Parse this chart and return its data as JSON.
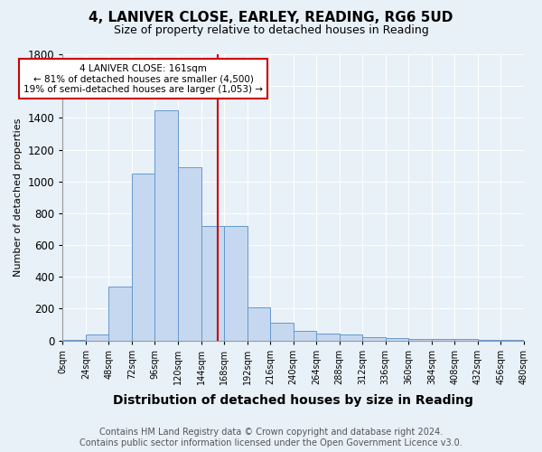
{
  "title": "4, LANIVER CLOSE, EARLEY, READING, RG6 5UD",
  "subtitle": "Size of property relative to detached houses in Reading",
  "xlabel": "Distribution of detached houses by size in Reading",
  "ylabel": "Number of detached properties",
  "footer_line1": "Contains HM Land Registry data © Crown copyright and database right 2024.",
  "footer_line2": "Contains public sector information licensed under the Open Government Licence v3.0.",
  "bar_edges": [
    0,
    24,
    48,
    72,
    96,
    120,
    144,
    168,
    192,
    216,
    240,
    264,
    288,
    312,
    336,
    360,
    384,
    408,
    432,
    456,
    480
  ],
  "bar_heights": [
    5,
    35,
    340,
    1050,
    1450,
    1090,
    720,
    720,
    210,
    110,
    60,
    45,
    35,
    20,
    15,
    12,
    10,
    8,
    6,
    5
  ],
  "bar_color": "#c5d8f0",
  "bar_edgecolor": "#6699cc",
  "vline_x": 161,
  "vline_color": "#cc0000",
  "annotation_text": "4 LANIVER CLOSE: 161sqm\n← 81% of detached houses are smaller (4,500)\n19% of semi-detached houses are larger (1,053) →",
  "annotation_box_edgecolor": "#cc0000",
  "annotation_box_facecolor": "#ffffff",
  "ylim": [
    0,
    1800
  ],
  "background_color": "#e8f0f8",
  "plot_background": "#e8f0f8",
  "tick_labels": [
    "0sqm",
    "24sqm",
    "48sqm",
    "72sqm",
    "96sqm",
    "120sqm",
    "144sqm",
    "168sqm",
    "192sqm",
    "216sqm",
    "240sqm",
    "264sqm",
    "288sqm",
    "312sqm",
    "336sqm",
    "360sqm",
    "384sqm",
    "408sqm",
    "432sqm",
    "456sqm",
    "480sqm"
  ],
  "title_fontsize": 11,
  "subtitle_fontsize": 9,
  "xlabel_fontsize": 10,
  "ylabel_fontsize": 8,
  "footer_fontsize": 7
}
